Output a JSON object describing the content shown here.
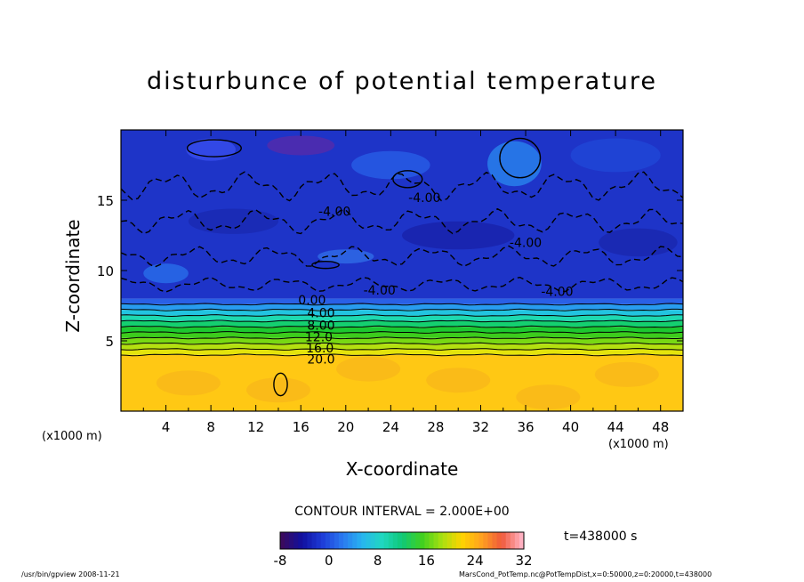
{
  "chart_data": {
    "type": "heatmap",
    "title": "disturbunce of potential temperature",
    "xlabel": "X-coordinate",
    "ylabel": "Z-coordinate",
    "x_unit_left": "(x1000 m)",
    "x_unit_right": "(x1000 m)",
    "xlim": [
      0,
      50
    ],
    "ylim": [
      0,
      20
    ],
    "x_ticks": [
      4,
      8,
      12,
      16,
      20,
      24,
      28,
      32,
      36,
      40,
      44,
      48
    ],
    "y_ticks": [
      5,
      10,
      15
    ],
    "contour_labels": [
      "-4.00",
      "-4.00",
      "-4.00",
      "-4.00",
      "-4.00",
      "0.00",
      "4.00",
      "8.00",
      "12.0",
      "16.0",
      "20.0"
    ],
    "contour_interval": "CONTOUR INTERVAL = 2.000E+00",
    "time": "t=438000 s",
    "colorbar": {
      "min": -8,
      "max": 32,
      "ticks": [
        -8,
        0,
        8,
        16,
        24,
        32
      ],
      "colors": [
        "#3a0a5e",
        "#1010a0",
        "#1e3cd8",
        "#2a78f0",
        "#28b4f0",
        "#20d8c0",
        "#10c878",
        "#40d020",
        "#a8e010",
        "#ffd400",
        "#ffa020",
        "#f05a3c",
        "#ffb0c0"
      ]
    },
    "layers": [
      {
        "z_top": 20.0,
        "value": -4,
        "color": "#1e34c8"
      },
      {
        "z_top": 8.0,
        "value": -1,
        "color": "#2a60e6"
      },
      {
        "z_top": 7.6,
        "value": 1,
        "color": "#289cf0"
      },
      {
        "z_top": 7.2,
        "value": 3,
        "color": "#22c4e0"
      },
      {
        "z_top": 6.8,
        "value": 5,
        "color": "#1ed8b0"
      },
      {
        "z_top": 6.4,
        "value": 7,
        "color": "#14d070"
      },
      {
        "z_top": 6.0,
        "value": 9,
        "color": "#1cc830"
      },
      {
        "z_top": 5.6,
        "value": 11,
        "color": "#3ccc1c"
      },
      {
        "z_top": 5.2,
        "value": 13,
        "color": "#78d814"
      },
      {
        "z_top": 4.8,
        "value": 15,
        "color": "#b4e010"
      },
      {
        "z_top": 4.4,
        "value": 17,
        "color": "#e4e40c"
      },
      {
        "z_top": 4.0,
        "value": 21,
        "color": "#ffc814"
      }
    ]
  },
  "footer": {
    "left": "/usr/bin/gpview   2008-11-21",
    "right": "MarsCond_PotTemp.nc@PotTempDist,x=0:50000,z=0:20000,t=438000"
  }
}
